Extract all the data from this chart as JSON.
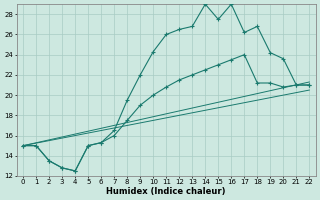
{
  "xlabel": "Humidex (Indice chaleur)",
  "ylabel": "",
  "xlim": [
    -0.5,
    22.5
  ],
  "ylim": [
    12,
    29
  ],
  "yticks": [
    12,
    14,
    16,
    18,
    20,
    22,
    24,
    26,
    28
  ],
  "xticks": [
    0,
    1,
    2,
    3,
    4,
    5,
    6,
    7,
    8,
    9,
    10,
    11,
    12,
    13,
    14,
    15,
    16,
    17,
    18,
    19,
    20,
    21,
    22
  ],
  "background_color": "#cde8e0",
  "grid_color": "#a8ccc4",
  "line_color": "#1a7a6e",
  "series1": {
    "x": [
      0,
      1,
      2,
      3,
      4,
      5,
      6,
      7,
      8,
      9,
      10,
      11,
      12,
      13,
      14,
      15,
      16,
      17,
      18,
      19,
      20,
      21,
      22
    ],
    "y": [
      15.0,
      15.0,
      13.5,
      12.8,
      12.5,
      15.0,
      15.3,
      16.5,
      19.5,
      22.0,
      24.3,
      26.0,
      26.5,
      26.8,
      29.0,
      27.5,
      29.0,
      26.2,
      26.8,
      24.2,
      23.6,
      21.0,
      21.0
    ]
  },
  "series2": {
    "x": [
      0,
      1,
      2,
      3,
      4,
      5,
      6,
      7,
      8,
      9,
      10,
      11,
      12,
      13,
      14,
      15,
      16,
      17,
      18,
      19,
      20,
      21,
      22
    ],
    "y": [
      15.0,
      15.0,
      13.5,
      12.8,
      12.5,
      15.0,
      15.3,
      16.0,
      17.5,
      19.0,
      20.0,
      20.8,
      21.5,
      22.0,
      22.5,
      23.0,
      23.5,
      24.0,
      21.2,
      21.2,
      20.8,
      21.0,
      21.0
    ]
  },
  "series3_x": [
    0,
    22
  ],
  "series3_y": [
    15.0,
    21.3
  ],
  "series4_x": [
    0,
    22
  ],
  "series4_y": [
    15.0,
    20.5
  ]
}
